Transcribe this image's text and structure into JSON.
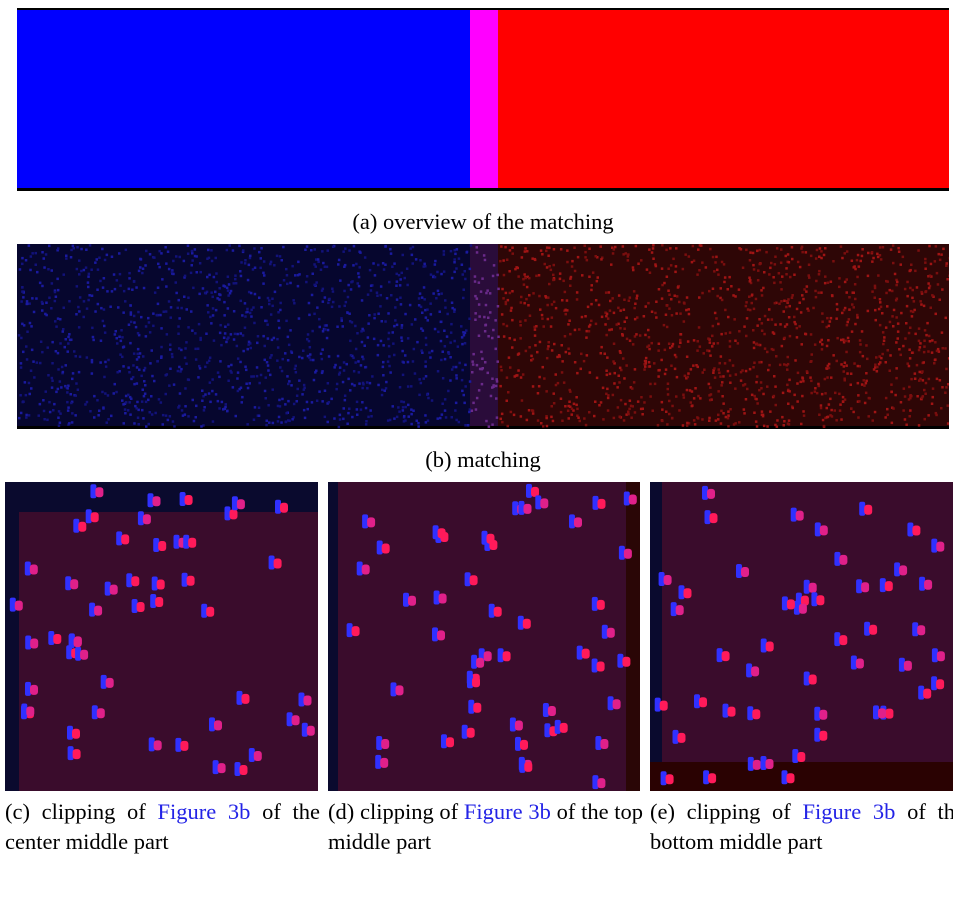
{
  "figures": [
    {
      "caption": "(a) overview of the matching"
    },
    {
      "caption": "(b) matching"
    }
  ],
  "subfigures": [
    {
      "caption_before": "(c) clipping of",
      "link": "Figure 3b",
      "caption_after": "of the center middle part"
    },
    {
      "caption_before": "(d) clipping of",
      "link": "Figure 3b",
      "caption_after": "of the top middle part"
    },
    {
      "caption_before": "(e) clipping of",
      "link": "Figure 3b",
      "caption_after": "of the bottom middle part"
    }
  ]
}
